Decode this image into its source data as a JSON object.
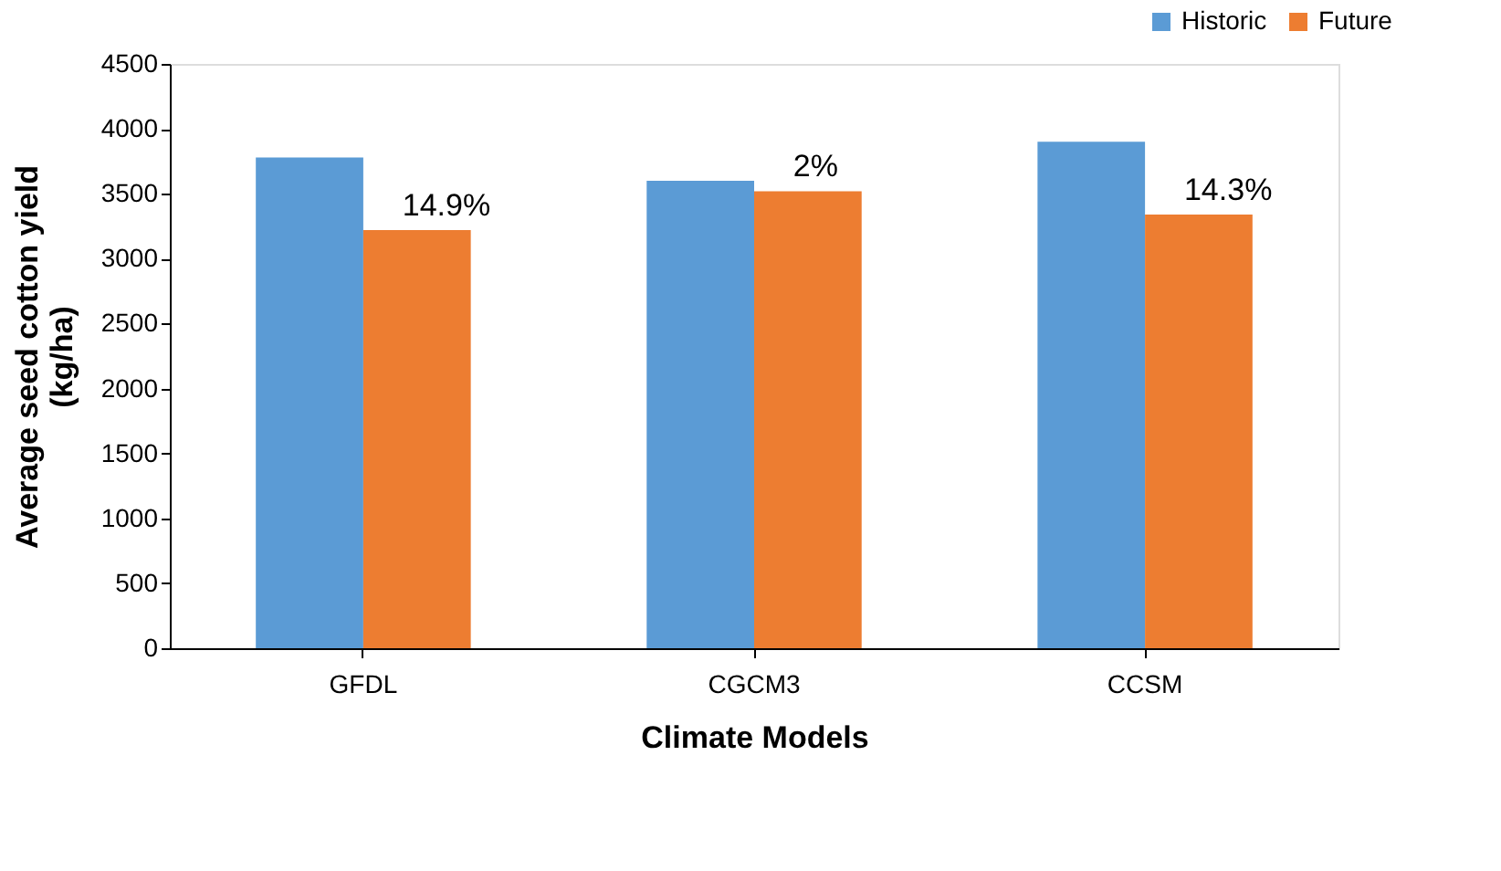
{
  "chart_data": {
    "type": "bar",
    "xlabel": "Climate Models",
    "ylabel": "Average seed cotton yield\n(kg/ha)",
    "categories": [
      "GFDL",
      "CGCM3",
      "CCSM"
    ],
    "series": [
      {
        "name": "Historic",
        "color": "#5b9bd5",
        "values": [
          3780,
          3600,
          3900
        ]
      },
      {
        "name": "Future",
        "color": "#ed7d31",
        "values": [
          3220,
          3520,
          3340
        ]
      }
    ],
    "ylim": [
      0,
      4500
    ],
    "yticks": [
      0,
      500,
      1000,
      1500,
      2000,
      2500,
      3000,
      3500,
      4000,
      4500
    ],
    "grid": false,
    "legend": "top right",
    "annotations": [
      {
        "text": "14.9%",
        "x": "GFDL",
        "y": 3220
      },
      {
        "text": "2%",
        "x": "CGCM3",
        "y": 3520
      },
      {
        "text": "14.3%",
        "x": "CCSM",
        "y": 3340
      }
    ]
  }
}
